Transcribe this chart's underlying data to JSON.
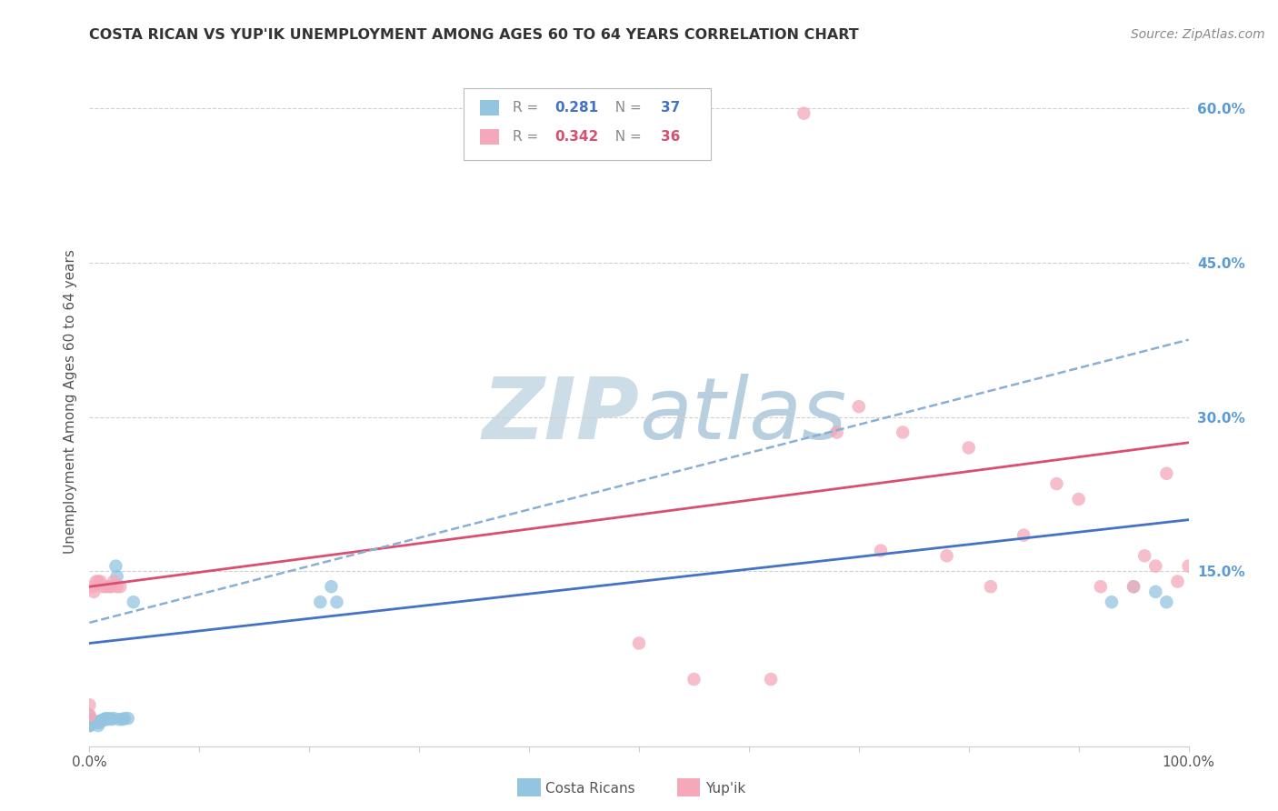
{
  "title": "COSTA RICAN VS YUP'IK UNEMPLOYMENT AMONG AGES 60 TO 64 YEARS CORRELATION CHART",
  "source": "Source: ZipAtlas.com",
  "ylabel": "Unemployment Among Ages 60 to 64 years",
  "xlim": [
    0,
    1.0
  ],
  "ylim": [
    -0.02,
    0.65
  ],
  "ytick_positions": [
    0.15,
    0.3,
    0.45,
    0.6
  ],
  "ytick_labels": [
    "15.0%",
    "30.0%",
    "45.0%",
    "60.0%"
  ],
  "ytick_color": "#5b9bd5",
  "blue_color": "#93C4E0",
  "pink_color": "#F4A8BA",
  "blue_line_color": "#4472c4",
  "pink_line_color": "#d94f70",
  "dashed_line_color": "#8aafd4",
  "watermark_color": "#ccdde8",
  "blue_line": [
    0.0,
    0.08,
    1.0,
    0.2
  ],
  "pink_line": [
    0.0,
    0.135,
    1.0,
    0.275
  ],
  "dashed_line": [
    0.0,
    0.1,
    1.0,
    0.375
  ],
  "cr_x": [
    0.0,
    0.0,
    0.0,
    0.0,
    0.0,
    0.0,
    0.0,
    0.0,
    0.0,
    0.0,
    0.005,
    0.006,
    0.008,
    0.009,
    0.01,
    0.011,
    0.012,
    0.013,
    0.015,
    0.016,
    0.018,
    0.02,
    0.022,
    0.024,
    0.025,
    0.027,
    0.03,
    0.032,
    0.035,
    0.04,
    0.21,
    0.22,
    0.225,
    0.93,
    0.95,
    0.97,
    0.98
  ],
  "cr_y": [
    0.0,
    0.0,
    0.0,
    0.002,
    0.003,
    0.003,
    0.004,
    0.005,
    0.006,
    0.007,
    0.003,
    0.004,
    0.0,
    0.003,
    0.004,
    0.005,
    0.005,
    0.006,
    0.007,
    0.006,
    0.007,
    0.006,
    0.007,
    0.155,
    0.145,
    0.006,
    0.006,
    0.007,
    0.007,
    0.12,
    0.12,
    0.135,
    0.12,
    0.12,
    0.135,
    0.13,
    0.12
  ],
  "yu_x": [
    0.0,
    0.0,
    0.0,
    0.003,
    0.004,
    0.006,
    0.008,
    0.01,
    0.012,
    0.015,
    0.018,
    0.02,
    0.022,
    0.025,
    0.028,
    0.5,
    0.55,
    0.62,
    0.65,
    0.68,
    0.7,
    0.72,
    0.74,
    0.78,
    0.8,
    0.82,
    0.85,
    0.88,
    0.9,
    0.92,
    0.95,
    0.96,
    0.97,
    0.98,
    0.99,
    1.0
  ],
  "yu_y": [
    0.01,
    0.01,
    0.02,
    0.135,
    0.13,
    0.14,
    0.14,
    0.14,
    0.135,
    0.135,
    0.135,
    0.135,
    0.14,
    0.135,
    0.135,
    0.08,
    0.045,
    0.045,
    0.595,
    0.285,
    0.31,
    0.17,
    0.285,
    0.165,
    0.27,
    0.135,
    0.185,
    0.235,
    0.22,
    0.135,
    0.135,
    0.165,
    0.155,
    0.245,
    0.14,
    0.155
  ]
}
